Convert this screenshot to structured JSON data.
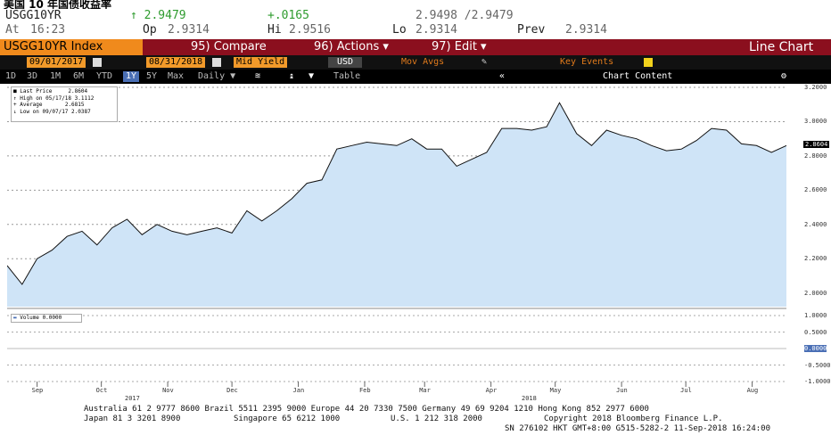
{
  "caption": "美国 10 年国债收益率",
  "quote": {
    "ticker": "USGG10YR",
    "last": "↑ 2.9479",
    "change": "+.0165",
    "bidask": "2.9498 /2.9479",
    "at_label": "At",
    "at_time": "16:23",
    "op_label": "Op",
    "op_value": "2.9314",
    "hi_label": "Hi",
    "hi_value": "2.9516",
    "lo_label": "Lo",
    "lo_value": "2.9314",
    "prev_label": "Prev",
    "prev_value": "2.9314"
  },
  "menubar": {
    "index": "USGG10YR Index",
    "compare": "95) Compare",
    "actions": "96) Actions ▾",
    "edit": "97) Edit ▾",
    "view": "Line Chart"
  },
  "rangebar": {
    "start": "09/01/2017",
    "end": "08/31/2018",
    "field": "Mid Yield",
    "currency": "USD",
    "movavg": "Mov Avgs",
    "keyevents": "Key Events"
  },
  "periodbar": {
    "periods": [
      "1D",
      "3D",
      "1M",
      "6M",
      "YTD",
      "1Y",
      "5Y",
      "Max"
    ],
    "selected": "1Y",
    "freq": "Daily ▼",
    "table": "Table",
    "chart_content": "Chart Content",
    "back": "«"
  },
  "legend": {
    "last": "Last Price",
    "last_val": "2.8604",
    "high": "High on 05/17/18",
    "high_val": "3.1112",
    "avg": "Average",
    "avg_val": "2.6815",
    "low": "Low on 09/07/17",
    "low_val": "2.0387",
    "volume": "Volume",
    "volume_val": "0.0000"
  },
  "yaxis": {
    "price_ticks": [
      "3.2000",
      "3.0000",
      "2.8000",
      "2.6000",
      "2.4000",
      "2.2000",
      "2.0000"
    ],
    "last_box": "2.8604",
    "volume_ticks": [
      "1.0000",
      "0.5000",
      "0.0000",
      "-0.5000",
      "-1.0000"
    ]
  },
  "xaxis": {
    "months": [
      "Sep",
      "Oct",
      "Nov",
      "Dec",
      "Jan",
      "Feb",
      "Mar",
      "Apr",
      "May",
      "Jun",
      "Jul",
      "Aug"
    ],
    "year1": "2017",
    "year2": "2018"
  },
  "footer": {
    "line1": "Australia 61 2 9777 8600 Brazil 5511 2395 9000 Europe 44 20 7330 7500 Germany 49 69 9204 1210 Hong Kong 852 2977 6000",
    "line2a": "Japan 81 3 3201 8900",
    "line2b": "Singapore 65 6212 1000",
    "line2c": "U.S. 1 212 318 2000",
    "line2d": "Copyright 2018 Bloomberg Finance L.P.",
    "line3": "SN 276102 HKT  GMT+8:00 G515-5282-2 11-Sep-2018 16:24:00"
  },
  "colors": {
    "fill": "#cfe4f7",
    "line": "#111111",
    "orange": "#f08a1c",
    "maroon": "#8b0f1e"
  },
  "chart_data": {
    "type": "area",
    "title": "USGG10YR Index",
    "ylabel": "Mid Yield",
    "ylim": [
      1.92,
      3.2
    ],
    "x": [
      "2017-09-01",
      "2017-09-08",
      "2017-09-15",
      "2017-09-22",
      "2017-09-29",
      "2017-10-06",
      "2017-10-13",
      "2017-10-20",
      "2017-10-27",
      "2017-11-03",
      "2017-11-10",
      "2017-11-17",
      "2017-11-24",
      "2017-12-01",
      "2017-12-08",
      "2017-12-15",
      "2017-12-22",
      "2017-12-29",
      "2018-01-05",
      "2018-01-12",
      "2018-01-19",
      "2018-01-26",
      "2018-02-02",
      "2018-02-09",
      "2018-02-16",
      "2018-02-23",
      "2018-03-02",
      "2018-03-09",
      "2018-03-16",
      "2018-03-23",
      "2018-03-30",
      "2018-04-06",
      "2018-04-13",
      "2018-04-20",
      "2018-04-27",
      "2018-05-04",
      "2018-05-11",
      "2018-05-17",
      "2018-05-25",
      "2018-06-01",
      "2018-06-08",
      "2018-06-15",
      "2018-06-22",
      "2018-06-29",
      "2018-07-06",
      "2018-07-13",
      "2018-07-20",
      "2018-07-27",
      "2018-08-03",
      "2018-08-10",
      "2018-08-17",
      "2018-08-24",
      "2018-08-31"
    ],
    "series": [
      {
        "values": [
          2.16,
          2.05,
          2.2,
          2.25,
          2.33,
          2.36,
          2.28,
          2.38,
          2.43,
          2.34,
          2.4,
          2.36,
          2.34,
          2.36,
          2.38,
          2.35,
          2.48,
          2.42,
          2.48,
          2.55,
          2.64,
          2.66,
          2.84,
          2.86,
          2.88,
          2.87,
          2.86,
          2.9,
          2.84,
          2.84,
          2.74,
          2.78,
          2.82,
          2.96,
          2.96,
          2.95,
          2.97,
          3.11,
          2.93,
          2.86,
          2.95,
          2.92,
          2.9,
          2.86,
          2.83,
          2.84,
          2.89,
          2.96,
          2.95,
          2.87,
          2.86,
          2.82,
          2.86
        ]
      }
    ]
  }
}
